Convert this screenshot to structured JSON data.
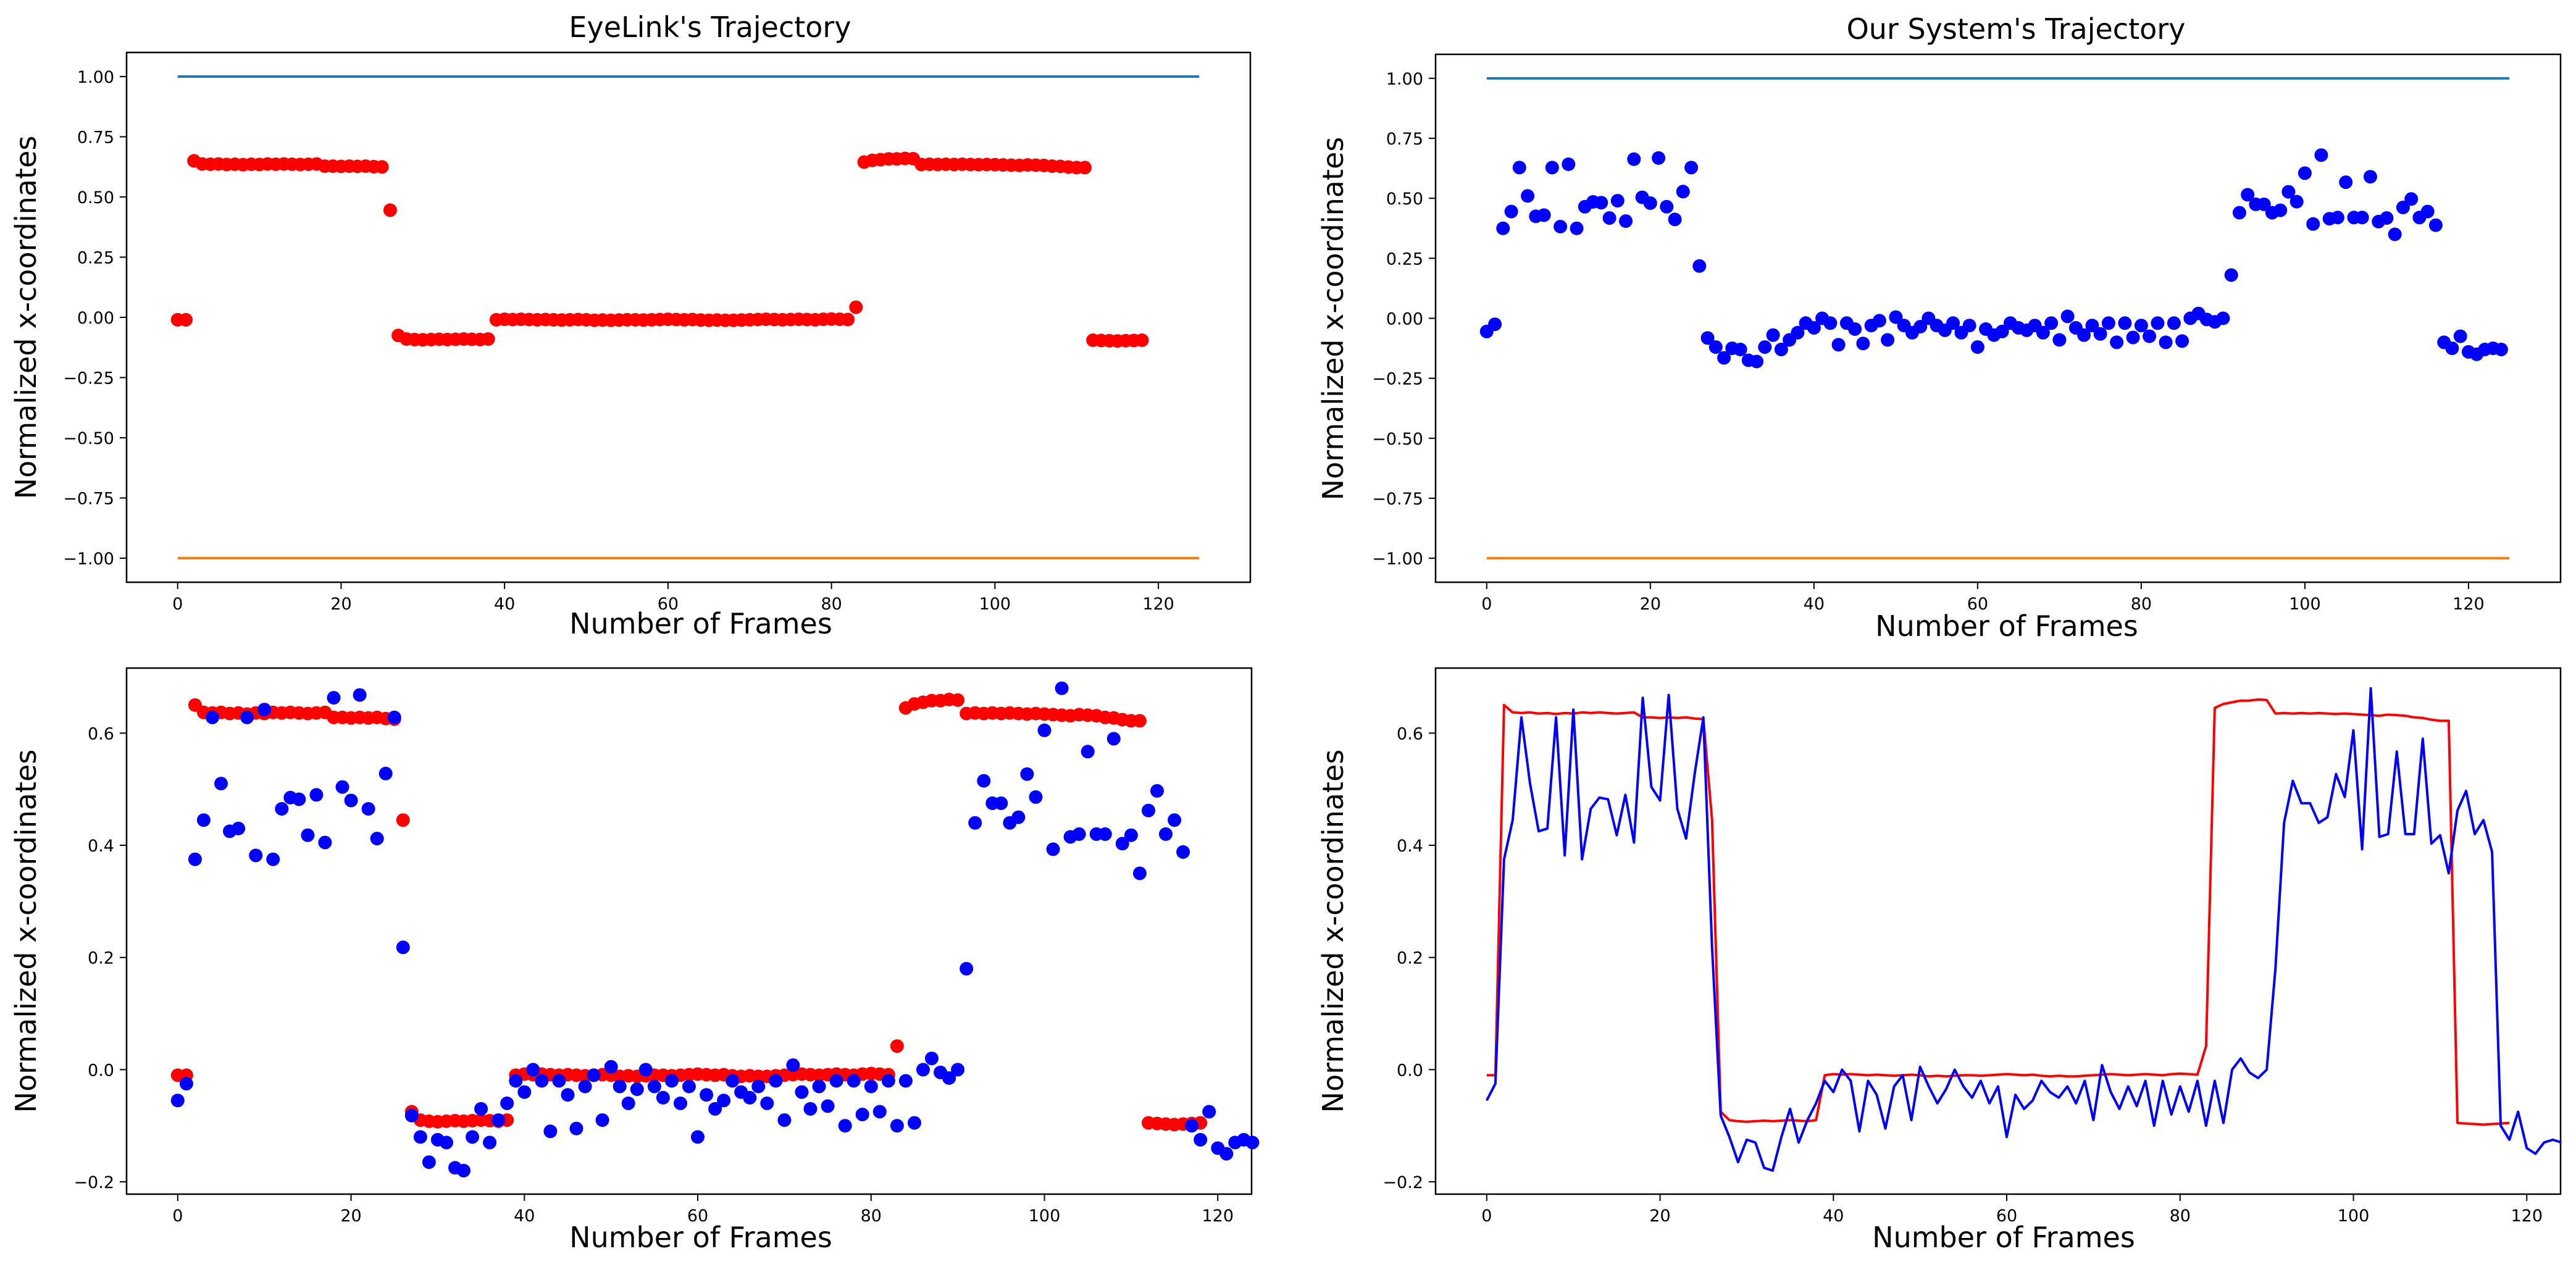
{
  "chart_data": [
    {
      "id": "eyelink",
      "type": "scatter",
      "title": "EyeLink's Trajectory",
      "xlabel": "Number of Frames",
      "ylabel": "Normalized x-coordinates",
      "xlim": [
        -6.25,
        131.25
      ],
      "ylim": [
        -1.1,
        1.1
      ],
      "xticks": [
        0,
        20,
        40,
        60,
        80,
        100,
        120
      ],
      "xtick_labels": [
        "0",
        "20",
        "40",
        "60",
        "80",
        "100",
        "120"
      ],
      "yticks": [
        1.0,
        0.75,
        0.5,
        0.25,
        0.0,
        -0.25,
        -0.5,
        -0.75,
        -1.0
      ],
      "ytick_labels": [
        "1.00",
        "0.75",
        "0.50",
        "0.25",
        "0.00",
        "−0.25",
        "−0.50",
        "−0.75",
        "−1.00"
      ],
      "hlines": [
        {
          "name": "upper-bound",
          "y": 1.0,
          "x": [
            0,
            125
          ],
          "color": "#1f77b4"
        },
        {
          "name": "lower-bound",
          "y": -1.0,
          "x": [
            0,
            125
          ],
          "color": "#ff7f0e"
        }
      ],
      "series": [
        {
          "name": "eyelink",
          "style": "markers",
          "color": "#ff0000",
          "source": "eyelink"
        }
      ]
    },
    {
      "id": "system",
      "type": "scatter",
      "title": "Our System's Trajectory",
      "xlabel": "Number of Frames",
      "ylabel": "Normalized x-coordinates",
      "xlim": [
        -6.25,
        131.25
      ],
      "ylim": [
        -1.1,
        1.1
      ],
      "xticks": [
        0,
        20,
        40,
        60,
        80,
        100,
        120
      ],
      "xtick_labels": [
        "0",
        "20",
        "40",
        "60",
        "80",
        "100",
        "120"
      ],
      "yticks": [
        1.0,
        0.75,
        0.5,
        0.25,
        0.0,
        -0.25,
        -0.5,
        -0.75,
        -1.0
      ],
      "ytick_labels": [
        "1.00",
        "0.75",
        "0.50",
        "0.25",
        "0.00",
        "−0.25",
        "−0.50",
        "−0.75",
        "−1.00"
      ],
      "hlines": [
        {
          "name": "upper-bound",
          "y": 1.0,
          "x": [
            0,
            125
          ],
          "color": "#1f77b4"
        },
        {
          "name": "lower-bound",
          "y": -1.0,
          "x": [
            0,
            125
          ],
          "color": "#ff7f0e"
        }
      ],
      "series": [
        {
          "name": "system",
          "style": "markers",
          "color": "#0000ff",
          "source": "system"
        }
      ]
    },
    {
      "id": "overlay-scatter",
      "type": "scatter",
      "title": "",
      "xlabel": "Number of Frames",
      "ylabel": "Normalized x-coordinates",
      "xlim": [
        -5.9,
        123.9
      ],
      "ylim": [
        -0.222,
        0.716
      ],
      "xticks": [
        0,
        20,
        40,
        60,
        80,
        100,
        120
      ],
      "xtick_labels": [
        "0",
        "20",
        "40",
        "60",
        "80",
        "100",
        "120"
      ],
      "yticks": [
        0.6,
        0.4,
        0.2,
        0.0,
        -0.2
      ],
      "ytick_labels": [
        "0.6",
        "0.4",
        "0.2",
        "0.0",
        "−0.2"
      ],
      "hlines": [],
      "series": [
        {
          "name": "eyelink",
          "style": "markers",
          "color": "#ff0000",
          "source": "eyelink"
        },
        {
          "name": "system",
          "style": "markers",
          "color": "#0000ff",
          "source": "system"
        }
      ]
    },
    {
      "id": "overlay-line",
      "type": "line",
      "title": "",
      "xlabel": "Number of Frames",
      "ylabel": "Normalized x-coordinates",
      "xlim": [
        -5.9,
        123.9
      ],
      "ylim": [
        -0.222,
        0.716
      ],
      "xticks": [
        0,
        20,
        40,
        60,
        80,
        100,
        120
      ],
      "xtick_labels": [
        "0",
        "20",
        "40",
        "60",
        "80",
        "100",
        "120"
      ],
      "yticks": [
        0.6,
        0.4,
        0.2,
        0.0,
        -0.2
      ],
      "ytick_labels": [
        "0.6",
        "0.4",
        "0.2",
        "0.0",
        "−0.2"
      ],
      "hlines": [],
      "series": [
        {
          "name": "eyelink",
          "style": "line",
          "color": "#ff0000",
          "source": "eyelink"
        },
        {
          "name": "system",
          "style": "line",
          "color": "#0000ff",
          "source": "system"
        }
      ]
    }
  ],
  "series_values": {
    "eyelink": [
      -0.01,
      -0.01,
      0.65,
      0.637,
      0.636,
      0.637,
      0.635,
      0.636,
      0.634,
      0.636,
      0.635,
      0.637,
      0.636,
      0.637,
      0.636,
      0.635,
      0.636,
      0.637,
      0.628,
      0.628,
      0.627,
      0.628,
      0.627,
      0.628,
      0.626,
      0.625,
      0.445,
      -0.075,
      -0.09,
      -0.092,
      -0.093,
      -0.092,
      -0.091,
      -0.092,
      -0.091,
      -0.09,
      -0.091,
      -0.092,
      -0.09,
      -0.01,
      -0.008,
      -0.009,
      -0.008,
      -0.009,
      -0.01,
      -0.009,
      -0.01,
      -0.011,
      -0.01,
      -0.009,
      -0.01,
      -0.012,
      -0.011,
      -0.012,
      -0.011,
      -0.01,
      -0.01,
      -0.011,
      -0.01,
      -0.009,
      -0.008,
      -0.009,
      -0.01,
      -0.009,
      -0.011,
      -0.012,
      -0.011,
      -0.012,
      -0.012,
      -0.011,
      -0.01,
      -0.009,
      -0.008,
      -0.009,
      -0.01,
      -0.009,
      -0.008,
      -0.009,
      -0.01,
      -0.008,
      -0.007,
      -0.008,
      -0.009,
      0.042,
      0.645,
      0.652,
      0.655,
      0.658,
      0.658,
      0.66,
      0.659,
      0.635,
      0.636,
      0.635,
      0.636,
      0.635,
      0.636,
      0.635,
      0.634,
      0.635,
      0.634,
      0.633,
      0.632,
      0.631,
      0.633,
      0.632,
      0.631,
      0.628,
      0.627,
      0.624,
      0.622,
      0.622,
      -0.095,
      -0.096,
      -0.097,
      -0.098,
      -0.097,
      -0.096,
      -0.095
    ],
    "system": [
      -0.055,
      -0.025,
      0.375,
      0.445,
      0.628,
      0.51,
      0.425,
      0.43,
      0.628,
      0.382,
      0.642,
      0.375,
      0.465,
      0.485,
      0.482,
      0.418,
      0.49,
      0.405,
      0.663,
      0.504,
      0.48,
      0.668,
      0.465,
      0.412,
      0.528,
      0.628,
      0.218,
      -0.082,
      -0.12,
      -0.165,
      -0.125,
      -0.13,
      -0.175,
      -0.18,
      -0.12,
      -0.07,
      -0.13,
      -0.09,
      -0.06,
      -0.02,
      -0.04,
      0.0,
      -0.02,
      -0.11,
      -0.02,
      -0.045,
      -0.105,
      -0.03,
      -0.01,
      -0.09,
      0.005,
      -0.03,
      -0.06,
      -0.035,
      0.0,
      -0.03,
      -0.05,
      -0.02,
      -0.06,
      -0.03,
      -0.12,
      -0.045,
      -0.07,
      -0.055,
      -0.02,
      -0.04,
      -0.05,
      -0.03,
      -0.06,
      -0.02,
      -0.09,
      0.008,
      -0.04,
      -0.07,
      -0.03,
      -0.065,
      -0.02,
      -0.1,
      -0.02,
      -0.08,
      -0.03,
      -0.075,
      -0.02,
      -0.1,
      -0.02,
      -0.095,
      0.0,
      0.02,
      -0.005,
      -0.015,
      0.0,
      0.18,
      0.44,
      0.515,
      0.475,
      0.475,
      0.44,
      0.45,
      0.527,
      0.486,
      0.605,
      0.393,
      0.68,
      0.415,
      0.42,
      0.567,
      0.42,
      0.42,
      0.59,
      0.403,
      0.418,
      0.35,
      0.462,
      0.497,
      0.42,
      0.445,
      0.388,
      -0.1,
      -0.125,
      -0.075,
      -0.14,
      -0.15,
      -0.13,
      -0.125,
      -0.13
    ]
  }
}
